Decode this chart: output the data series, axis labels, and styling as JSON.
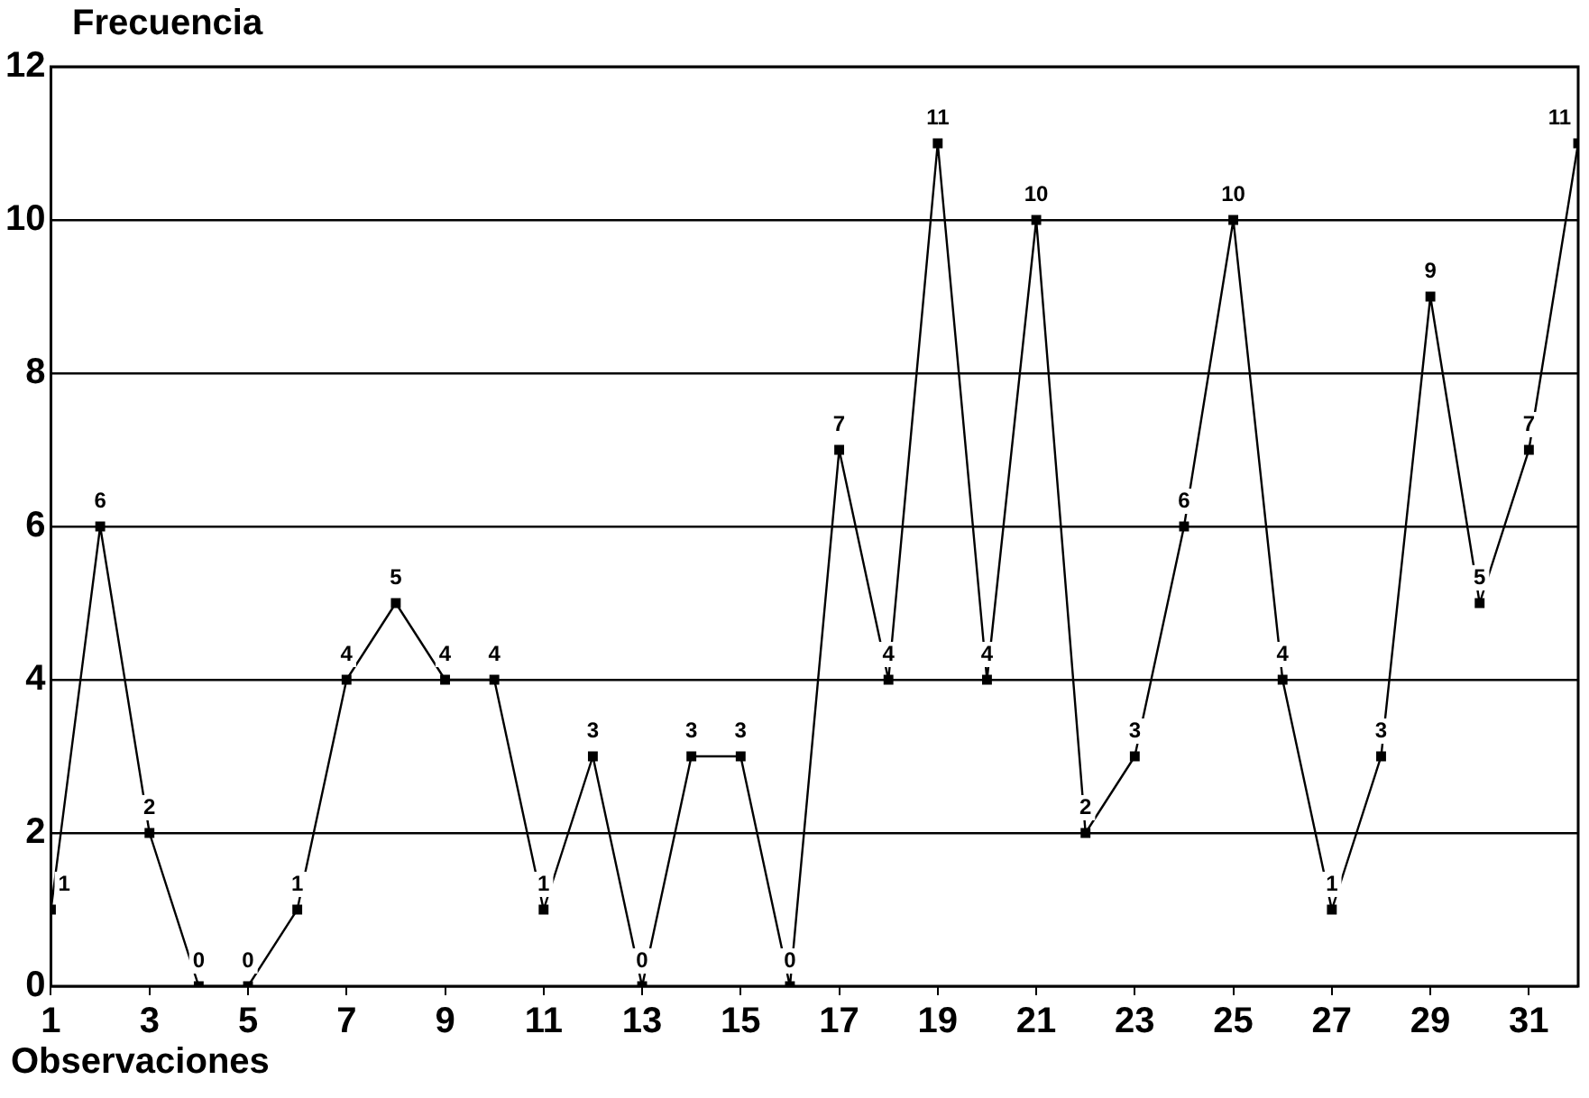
{
  "chart_data": {
    "type": "line",
    "title": "Frecuencia",
    "xlabel": "Observaciones",
    "x": [
      1,
      2,
      3,
      4,
      5,
      6,
      7,
      8,
      9,
      10,
      11,
      12,
      13,
      14,
      15,
      16,
      17,
      18,
      19,
      20,
      21,
      22,
      23,
      24,
      25,
      26,
      27,
      28,
      29,
      30,
      31,
      32
    ],
    "series": [
      {
        "color": "#000000",
        "values": [
          1,
          6,
          2,
          0,
          0,
          1,
          4,
          5,
          4,
          4,
          1,
          3,
          0,
          3,
          3,
          0,
          7,
          4,
          11,
          4,
          10,
          2,
          3,
          6,
          10,
          4,
          1,
          3,
          9,
          5,
          7,
          11
        ]
      }
    ],
    "xlim": [
      1,
      32
    ],
    "xticks": [
      1,
      3,
      5,
      7,
      9,
      11,
      13,
      15,
      17,
      19,
      21,
      23,
      25,
      27,
      29,
      31
    ],
    "ylim": [
      0,
      12
    ],
    "yticks": [
      0,
      2,
      4,
      6,
      8,
      10,
      12
    ],
    "grid": "y",
    "marker": "square",
    "line_style": "solid",
    "data_labels": true,
    "legend": false
  }
}
